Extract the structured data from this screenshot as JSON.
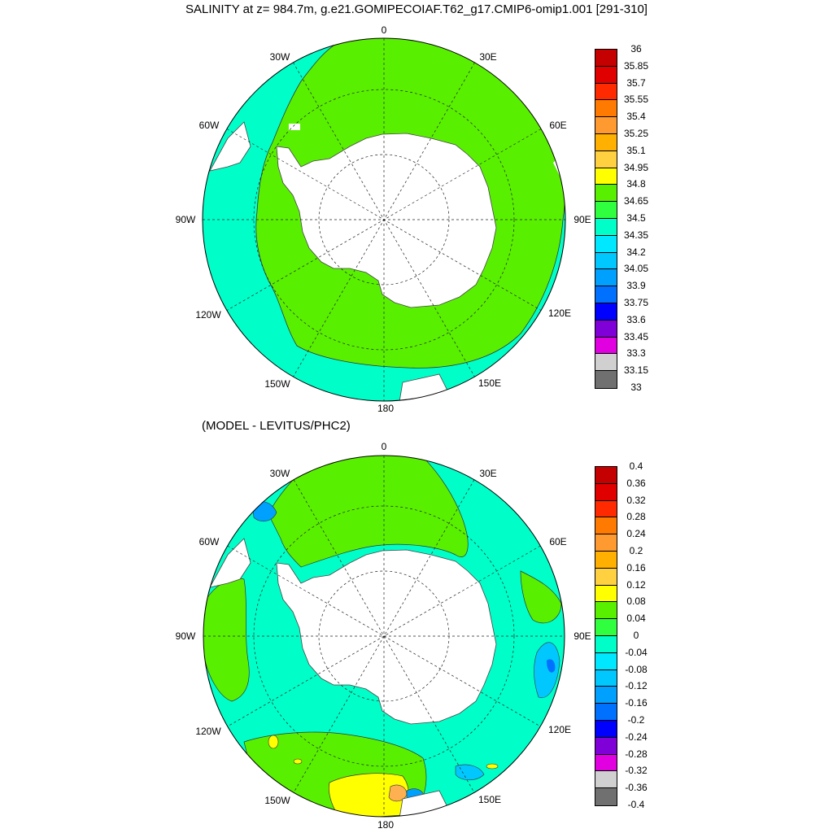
{
  "title": "SALINITY at z= 984.7m, g.e21.GOMIPECOIAF.T62_g17.CMIP6-omip1.001 [291-310]",
  "subtitle": "(MODEL - LEVITUS/PHC2)",
  "longitude_labels": {
    "top": "0",
    "tr": "30E",
    "right_upper": "60E",
    "right": "90E",
    "br": "120E",
    "bottom_right": "150E",
    "bottom": "180",
    "bottom_left": "150W",
    "bl": "120W",
    "left": "90W",
    "left_upper": "60W",
    "tl": "30W"
  },
  "colorbar_top": {
    "labels": [
      "36",
      "35.85",
      "35.7",
      "35.55",
      "35.4",
      "35.25",
      "35.1",
      "34.95",
      "34.8",
      "34.65",
      "34.5",
      "34.35",
      "34.2",
      "34.05",
      "33.9",
      "33.75",
      "33.6",
      "33.45",
      "33.3",
      "33.15",
      "33"
    ],
    "colors": [
      "#c40000",
      "#e00000",
      "#ff2a00",
      "#ff7a00",
      "#ff9a30",
      "#ffb000",
      "#ffd040",
      "#ffff00",
      "#58f000",
      "#30ff40",
      "#00ffc8",
      "#00e8ff",
      "#00c8ff",
      "#00a0ff",
      "#0070ff",
      "#0000ff",
      "#8000d8",
      "#e000e0",
      "#d0d0d0",
      "#707070"
    ]
  },
  "colorbar_bottom": {
    "labels": [
      "0.4",
      "0.36",
      "0.32",
      "0.28",
      "0.24",
      "0.2",
      "0.16",
      "0.12",
      "0.08",
      "0.04",
      "0",
      "-0.04",
      "-0.08",
      "-0.12",
      "-0.16",
      "-0.2",
      "-0.24",
      "-0.28",
      "-0.32",
      "-0.36",
      "-0.4"
    ],
    "colors": [
      "#c40000",
      "#e00000",
      "#ff2a00",
      "#ff7a00",
      "#ff9a30",
      "#ffb000",
      "#ffd040",
      "#ffff00",
      "#58f000",
      "#30ff40",
      "#00ffc8",
      "#00e8ff",
      "#00c8ff",
      "#00a0ff",
      "#0070ff",
      "#0000ff",
      "#8000d8",
      "#e000e0",
      "#d0d0d0",
      "#707070"
    ]
  }
}
